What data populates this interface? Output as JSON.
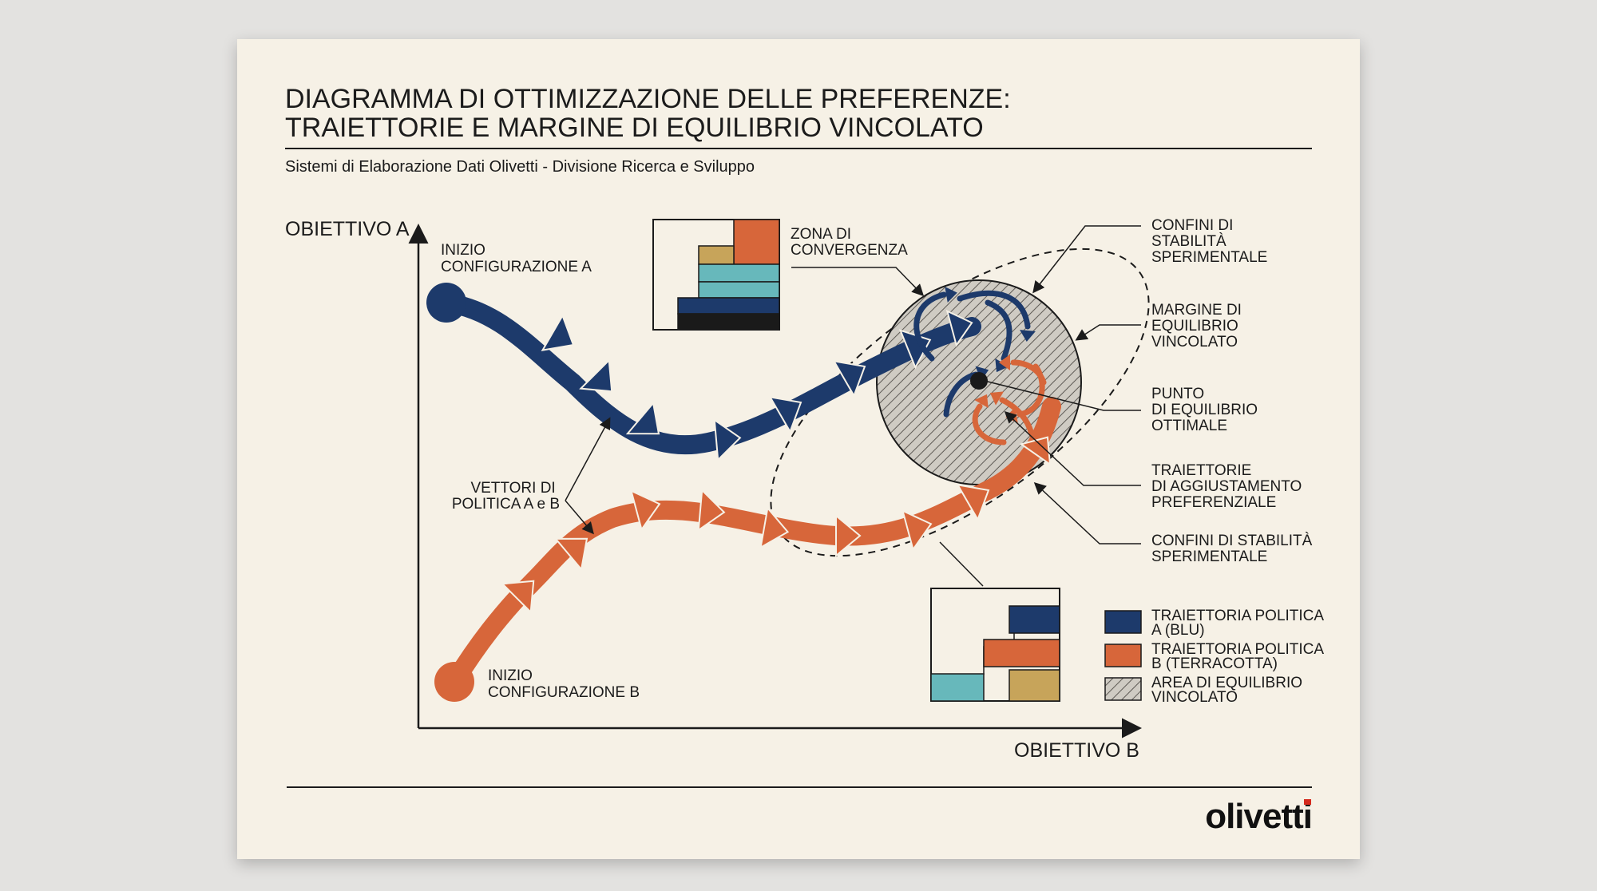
{
  "title": {
    "line1": "DIAGRAMMA DI OTTIMIZZAZIONE DELLE PREFERENZE:",
    "line2": "TRAIETTORIE E MARGINE DI EQUILIBRIO VINCOLATO"
  },
  "subtitle": "Sistemi di Elaborazione Dati Olivetti - Divisione Ricerca e Sviluppo",
  "axes": {
    "y_label": "OBIETTIVO A",
    "x_label": "OBIETTIVO B"
  },
  "start_labels": {
    "a": [
      "INIZIO",
      "CONFIGURAZIONE A"
    ],
    "b": [
      "INIZIO",
      "CONFIGURAZIONE B"
    ]
  },
  "vectors_label": [
    "VETTORI DI",
    "POLITICA A e B"
  ],
  "convergence_label": [
    "ZONA DI",
    "CONVERGENZA"
  ],
  "callouts": {
    "stability_top": [
      "CONFINI DI",
      "STABILITÀ",
      "SPERIMENTALE"
    ],
    "margin": [
      "MARGINE DI",
      "EQUILIBRIO",
      "VINCOLATO"
    ],
    "optimum": [
      "PUNTO",
      "DI EQUILIBRIO",
      "OTTIMALE"
    ],
    "adjustment": [
      "TRAIETTORIE",
      "DI AGGIUSTAMENTO",
      "PREFERENZIALE"
    ],
    "stability_bottom": [
      "CONFINI DI STABILITÀ",
      "SPERIMENTALE"
    ]
  },
  "legend": [
    {
      "key": "blue",
      "lines": [
        "TRAIETTORIA POLITICA",
        "A (BLU)"
      ]
    },
    {
      "key": "terracotta",
      "lines": [
        "TRAIETTORIA POLITICA",
        "B (TERRACOTTA)"
      ]
    },
    {
      "key": "hatch",
      "lines": [
        "AREA DI EQUILIBRIO",
        "VINCOLATO"
      ]
    }
  ],
  "brand": "olivetti",
  "colors": {
    "blue": "#1d3a6b",
    "terracotta": "#d7663a",
    "teal": "#67b8bb",
    "mustard": "#c7a45a",
    "black": "#1a1a1a",
    "paper": "#f6f1e6",
    "hatch_bg": "#cfcbc3",
    "ink": "#1b1b1b"
  }
}
